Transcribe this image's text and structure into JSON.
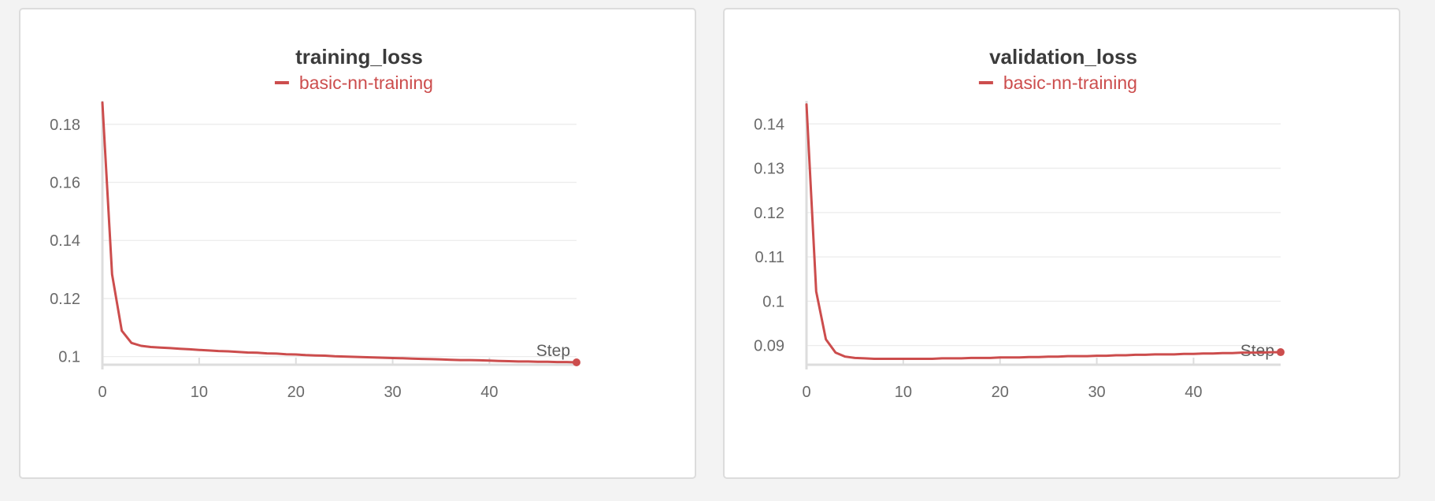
{
  "colors": {
    "series": "#cc4d4d",
    "background": "#f3f3f3",
    "panel": "#ffffff"
  },
  "chart_data": [
    {
      "type": "line",
      "title": "training_loss",
      "xlabel": "Step",
      "ylabel": "",
      "xlim": [
        0,
        49
      ],
      "ylim": [
        0.098,
        0.187
      ],
      "xticks": [
        0,
        10,
        20,
        30,
        40
      ],
      "xtick_labels": [
        "0",
        "10",
        "20",
        "30",
        "40"
      ],
      "yticks": [
        0.1,
        0.12,
        0.14,
        0.16,
        0.18
      ],
      "ytick_labels": [
        "0.1",
        "0.12",
        "0.14",
        "0.16",
        "0.18"
      ],
      "grid": true,
      "legend_position": "top-center",
      "x": [
        0,
        1,
        2,
        3,
        4,
        5,
        6,
        7,
        8,
        9,
        10,
        11,
        12,
        13,
        14,
        15,
        16,
        17,
        18,
        19,
        20,
        21,
        22,
        23,
        24,
        25,
        26,
        27,
        28,
        29,
        30,
        31,
        32,
        33,
        34,
        35,
        36,
        37,
        38,
        39,
        40,
        41,
        42,
        43,
        44,
        45,
        46,
        47,
        48,
        49
      ],
      "series": [
        {
          "name": "basic-nn-training",
          "color": "#cc4d4d",
          "values": [
            0.1875,
            0.1283,
            0.1089,
            0.1047,
            0.1037,
            0.1033,
            0.1031,
            0.1029,
            0.1027,
            0.1025,
            0.1023,
            0.1021,
            0.1019,
            0.1018,
            0.1016,
            0.1014,
            0.1013,
            0.1011,
            0.101,
            0.1008,
            0.1007,
            0.1005,
            0.1004,
            0.1003,
            0.1001,
            0.1,
            0.0999,
            0.0998,
            0.0997,
            0.0996,
            0.0995,
            0.0994,
            0.0993,
            0.0992,
            0.0991,
            0.099,
            0.0989,
            0.0988,
            0.0988,
            0.0987,
            0.0986,
            0.0985,
            0.0984,
            0.0983,
            0.0983,
            0.0982,
            0.0982,
            0.0981,
            0.0981,
            0.098
          ]
        }
      ]
    },
    {
      "type": "line",
      "title": "validation_loss",
      "xlabel": "Step",
      "ylabel": "",
      "xlim": [
        0,
        49
      ],
      "ylim": [
        0.0862,
        0.1445
      ],
      "xticks": [
        0,
        10,
        20,
        30,
        40
      ],
      "xtick_labels": [
        "0",
        "10",
        "20",
        "30",
        "40"
      ],
      "yticks": [
        0.09,
        0.1,
        0.11,
        0.12,
        0.13,
        0.14
      ],
      "ytick_labels": [
        "0.09",
        "0.1",
        "0.11",
        "0.12",
        "0.13",
        "0.14"
      ],
      "grid": true,
      "legend_position": "top-center",
      "x": [
        0,
        1,
        2,
        3,
        4,
        5,
        6,
        7,
        8,
        9,
        10,
        11,
        12,
        13,
        14,
        15,
        16,
        17,
        18,
        19,
        20,
        21,
        22,
        23,
        24,
        25,
        26,
        27,
        28,
        29,
        30,
        31,
        32,
        33,
        34,
        35,
        36,
        37,
        38,
        39,
        40,
        41,
        42,
        43,
        44,
        45,
        46,
        47,
        48,
        49
      ],
      "series": [
        {
          "name": "basic-nn-training",
          "color": "#cc4d4d",
          "values": [
            0.1444,
            0.1022,
            0.0914,
            0.0884,
            0.0875,
            0.0872,
            0.0871,
            0.087,
            0.087,
            0.087,
            0.087,
            0.087,
            0.087,
            0.087,
            0.0871,
            0.0871,
            0.0871,
            0.0872,
            0.0872,
            0.0872,
            0.0873,
            0.0873,
            0.0873,
            0.0874,
            0.0874,
            0.0875,
            0.0875,
            0.0876,
            0.0876,
            0.0876,
            0.0877,
            0.0877,
            0.0878,
            0.0878,
            0.0879,
            0.0879,
            0.088,
            0.088,
            0.088,
            0.0881,
            0.0881,
            0.0882,
            0.0882,
            0.0883,
            0.0883,
            0.0884,
            0.0884,
            0.0884,
            0.0885,
            0.0885
          ]
        }
      ]
    }
  ]
}
